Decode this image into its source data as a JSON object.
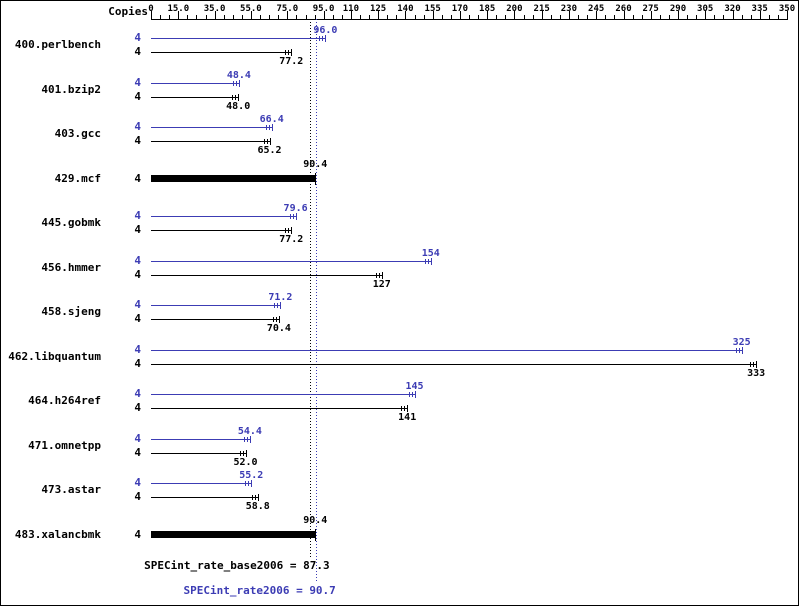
{
  "chart_data": {
    "type": "bar",
    "orientation": "horizontal",
    "copies_header": "Copies",
    "colors": {
      "peak": "#3c3cb4",
      "base": "#000000",
      "background": "#ffffff"
    },
    "axis": {
      "min": 0,
      "max": 350,
      "minor_step": 5,
      "major_ticks": [
        0,
        15,
        35,
        55,
        75,
        95,
        110,
        125,
        140,
        155,
        170,
        185,
        200,
        215,
        230,
        245,
        260,
        275,
        290,
        305,
        320,
        335,
        350
      ],
      "tick_labels": [
        "0",
        "15.0",
        "35.0",
        "55.0",
        "75.0",
        "95.0",
        "110",
        "125",
        "140",
        "155",
        "170",
        "185",
        "200",
        "215",
        "230",
        "245",
        "260",
        "275",
        "290",
        "305",
        "320",
        "335",
        "350"
      ]
    },
    "benchmarks": [
      {
        "name": "400.perlbench",
        "copies": "4",
        "peak": 96.0,
        "peak_label": "96.0",
        "base": 77.2,
        "base_label": "77.2",
        "base_only": false
      },
      {
        "name": "401.bzip2",
        "copies": "4",
        "peak": 48.4,
        "peak_label": "48.4",
        "base": 48.0,
        "base_label": "48.0",
        "base_only": false
      },
      {
        "name": "403.gcc",
        "copies": "4",
        "peak": 66.4,
        "peak_label": "66.4",
        "base": 65.2,
        "base_label": "65.2",
        "base_only": false
      },
      {
        "name": "429.mcf",
        "copies": "4",
        "base": 90.4,
        "base_label": "90.4",
        "base_only": true
      },
      {
        "name": "445.gobmk",
        "copies": "4",
        "peak": 79.6,
        "peak_label": "79.6",
        "base": 77.2,
        "base_label": "77.2",
        "base_only": false
      },
      {
        "name": "456.hmmer",
        "copies": "4",
        "peak": 154,
        "peak_label": "154",
        "base": 127,
        "base_label": "127",
        "base_only": false
      },
      {
        "name": "458.sjeng",
        "copies": "4",
        "peak": 71.2,
        "peak_label": "71.2",
        "base": 70.4,
        "base_label": "70.4",
        "base_only": false
      },
      {
        "name": "462.libquantum",
        "copies": "4",
        "peak": 325,
        "peak_label": "325",
        "base": 333,
        "base_label": "333",
        "base_only": false
      },
      {
        "name": "464.h264ref",
        "copies": "4",
        "peak": 145,
        "peak_label": "145",
        "base": 141,
        "base_label": "141",
        "base_only": false
      },
      {
        "name": "471.omnetpp",
        "copies": "4",
        "peak": 54.4,
        "peak_label": "54.4",
        "base": 52.0,
        "base_label": "52.0",
        "base_only": false
      },
      {
        "name": "473.astar",
        "copies": "4",
        "peak": 55.2,
        "peak_label": "55.2",
        "base": 58.8,
        "base_label": "58.8",
        "base_only": false
      },
      {
        "name": "483.xalancbmk",
        "copies": "4",
        "base": 90.4,
        "base_label": "90.4",
        "base_only": true
      }
    ],
    "summary": {
      "base_label": "SPECint_rate_base2006 = 87.3",
      "base_value": 87.3,
      "peak_label": "SPECint_rate2006 = 90.7",
      "peak_value": 90.7
    }
  }
}
